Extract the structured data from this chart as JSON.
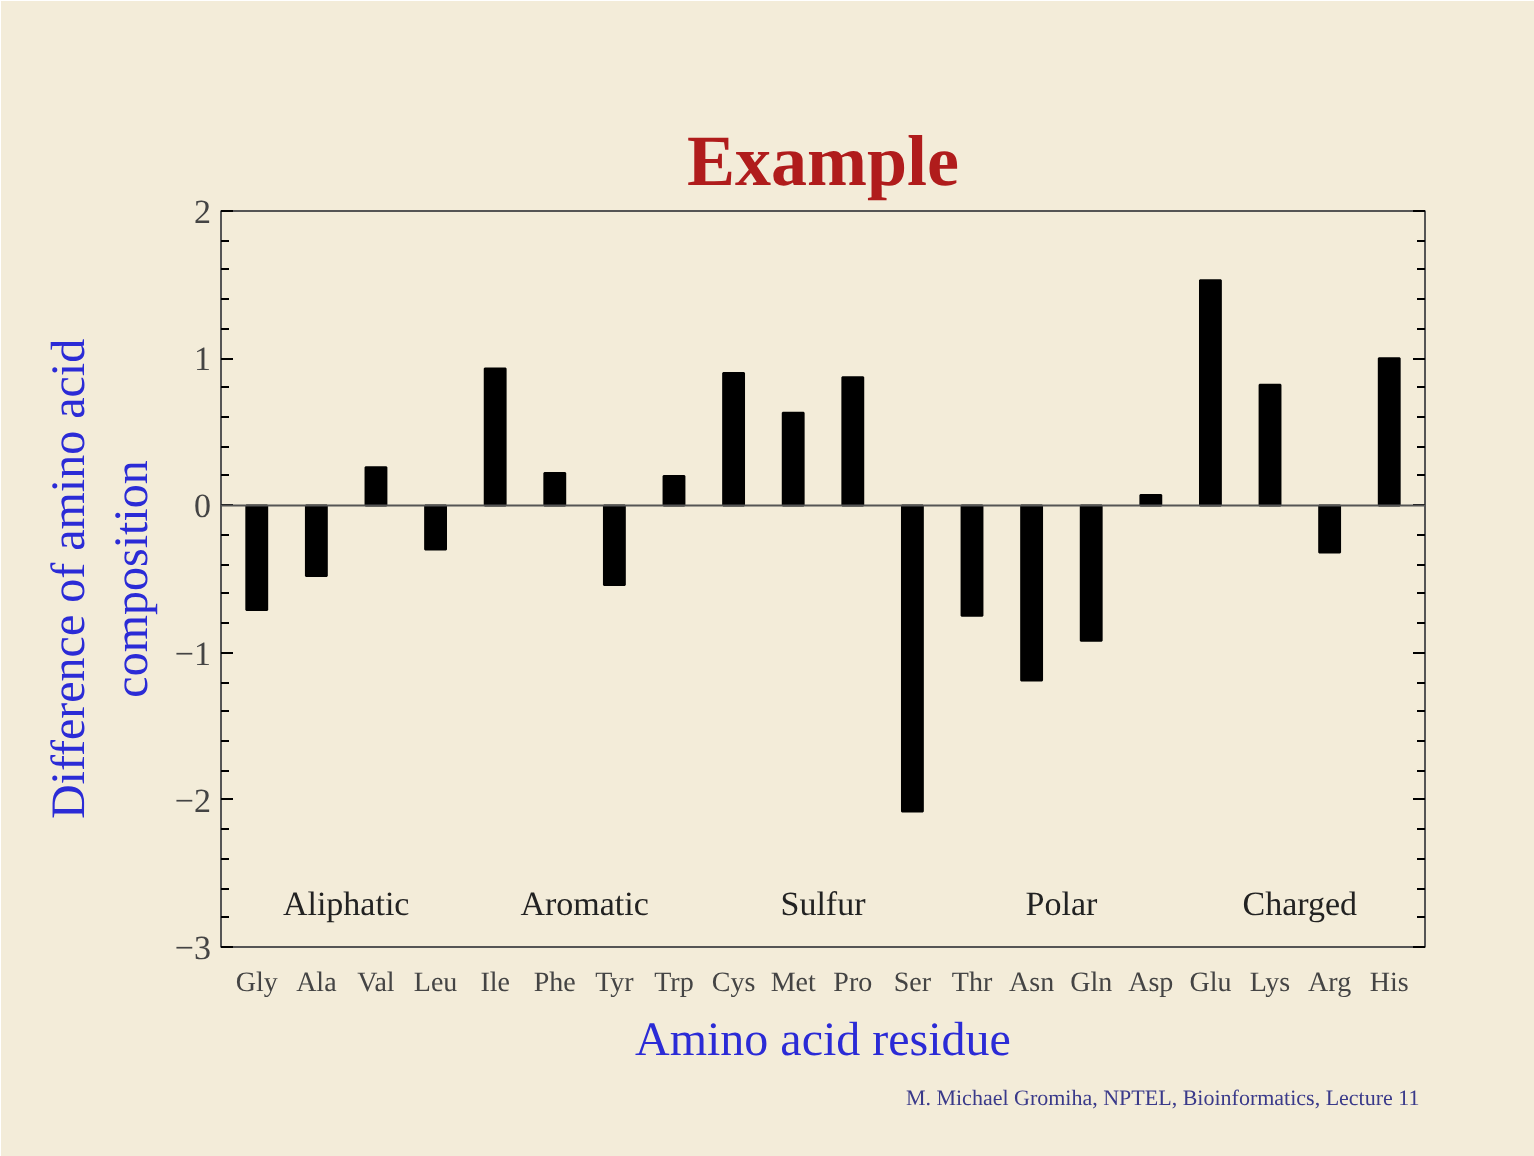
{
  "chart_data": {
    "type": "bar",
    "title": "Example",
    "xlabel": "Amino acid residue",
    "ylabel": "Difference of amino acid composition",
    "categories": [
      "Gly",
      "Ala",
      "Val",
      "Leu",
      "Ile",
      "Phe",
      "Tyr",
      "Trp",
      "Cys",
      "Met",
      "Pro",
      "Ser",
      "Thr",
      "Asn",
      "Gln",
      "Asp",
      "Glu",
      "Lys",
      "Arg",
      "His"
    ],
    "values": [
      -0.71,
      -0.48,
      0.26,
      -0.3,
      0.93,
      0.22,
      -0.54,
      0.2,
      0.9,
      0.63,
      0.87,
      -2.08,
      -0.75,
      -1.19,
      -0.92,
      0.07,
      1.53,
      0.82,
      -0.32,
      1.0
    ],
    "color": "#000000",
    "ylim": [
      -3,
      2
    ],
    "yticks": [
      -3,
      -2,
      -1,
      0,
      1,
      2
    ],
    "ref_lines": [
      {
        "axis": "y",
        "value": 0,
        "color": "#555555"
      }
    ],
    "annotations": [
      "Aliphatic",
      "Aromatic",
      "Sulfur",
      "Polar",
      "Charged",
      "M. Michael Gromiha,  NPTEL, Bioinformatics, Lecture 11"
    ]
  }
}
